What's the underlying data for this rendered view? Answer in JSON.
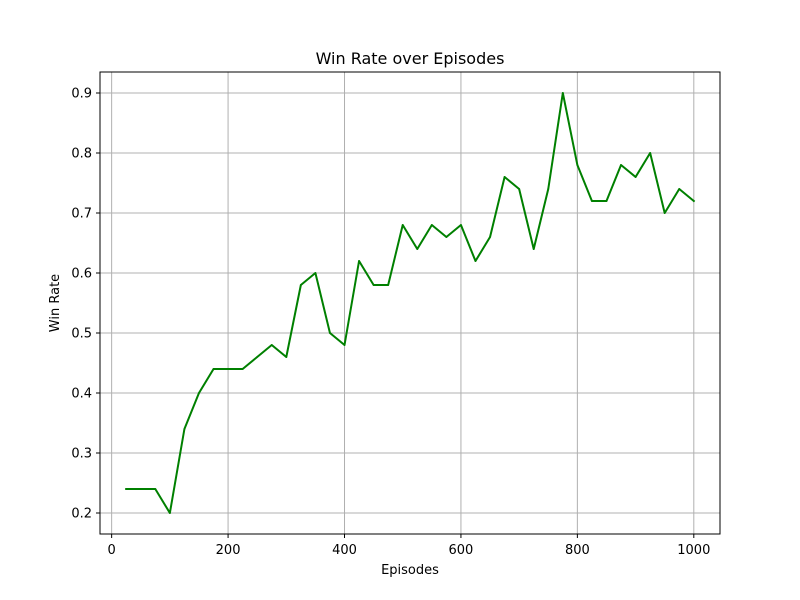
{
  "chart_data": {
    "type": "line",
    "title": "Win Rate over Episodes",
    "xlabel": "Episodes",
    "ylabel": "Win Rate",
    "xlim": [
      -20,
      1045
    ],
    "ylim": [
      0.165,
      0.935
    ],
    "xticks": [
      0,
      200,
      400,
      600,
      800,
      1000
    ],
    "yticks": [
      0.2,
      0.3,
      0.4,
      0.5,
      0.6,
      0.7,
      0.8,
      0.9
    ],
    "xtick_labels": [
      "0",
      "200",
      "400",
      "600",
      "800",
      "1000"
    ],
    "ytick_labels": [
      "0.2",
      "0.3",
      "0.4",
      "0.5",
      "0.6",
      "0.7",
      "0.8",
      "0.9"
    ],
    "grid": true,
    "legend": false,
    "colors": {
      "line": "#008000",
      "grid": "#b0b0b0",
      "axes": "#000000"
    },
    "series": [
      {
        "x": [
          25,
          50,
          75,
          100,
          125,
          150,
          175,
          200,
          225,
          250,
          275,
          300,
          325,
          350,
          375,
          400,
          425,
          450,
          475,
          500,
          525,
          550,
          575,
          600,
          625,
          650,
          675,
          700,
          725,
          750,
          775,
          800,
          825,
          850,
          875,
          900,
          925,
          950,
          975,
          1000
        ],
        "y": [
          0.24,
          0.24,
          0.24,
          0.2,
          0.34,
          0.4,
          0.44,
          0.44,
          0.44,
          0.46,
          0.48,
          0.46,
          0.58,
          0.6,
          0.5,
          0.48,
          0.62,
          0.58,
          0.58,
          0.68,
          0.64,
          0.68,
          0.66,
          0.68,
          0.62,
          0.66,
          0.76,
          0.74,
          0.64,
          0.74,
          0.9,
          0.78,
          0.72,
          0.72,
          0.78,
          0.76,
          0.8,
          0.7,
          0.74,
          0.72
        ]
      }
    ]
  }
}
